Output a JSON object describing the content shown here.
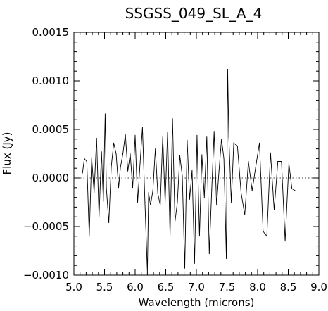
{
  "chart_data": {
    "type": "line",
    "title": "SSGSS_049_SL_A_4",
    "xlabel": "Wavelength (microns)",
    "ylabel": "Flux (Jy)",
    "xlim": [
      5.0,
      9.0
    ],
    "ylim": [
      -0.001,
      0.0015
    ],
    "x_ticks": [
      "5.0",
      "5.5",
      "6.0",
      "6.5",
      "7.0",
      "7.5",
      "8.0",
      "8.5",
      "9.0"
    ],
    "y_ticks": [
      "0.0015",
      "0.0010",
      "0.0005",
      "0.0000",
      "−0.0005",
      "−0.0010"
    ],
    "reference_line": {
      "y": 0.0,
      "style": "dotted"
    },
    "grid": false,
    "series": [
      {
        "color": "#000000",
        "x": [
          5.14,
          5.17,
          5.21,
          5.25,
          5.29,
          5.33,
          5.37,
          5.41,
          5.45,
          5.48,
          5.51,
          5.53,
          5.57,
          5.61,
          5.65,
          5.69,
          5.73,
          5.76,
          5.8,
          5.84,
          5.88,
          5.92,
          5.96,
          6.0,
          6.04,
          6.08,
          6.12,
          6.16,
          6.2,
          6.22,
          6.25,
          6.29,
          6.33,
          6.37,
          6.41,
          6.45,
          6.49,
          6.53,
          6.57,
          6.61,
          6.65,
          6.69,
          6.73,
          6.77,
          6.81,
          6.85,
          6.89,
          6.93,
          6.97,
          7.01,
          7.05,
          7.09,
          7.13,
          7.17,
          7.21,
          7.25,
          7.29,
          7.33,
          7.37,
          7.41,
          7.45,
          7.49,
          7.51,
          7.53,
          7.57,
          7.61,
          7.67,
          7.73,
          7.79,
          7.85,
          7.91,
          7.97,
          8.03,
          8.09,
          8.15,
          8.21,
          8.27,
          8.33,
          8.39,
          8.45,
          8.51,
          8.56,
          8.61
        ],
        "values": [
          5e-05,
          0.0002,
          0.00017,
          -0.0006,
          0.00021,
          -0.00015,
          0.00041,
          -0.0004,
          0.00027,
          -0.00024,
          0.00066,
          -0.0001,
          -0.00046,
          0.00012,
          0.00036,
          0.00025,
          -0.0001,
          0.00011,
          0.00025,
          0.00045,
          7e-05,
          0.00025,
          -0.0001,
          0.00044,
          -0.00025,
          0.00015,
          0.00052,
          -0.00025,
          -0.00097,
          -0.00015,
          -0.00028,
          -0.00013,
          0.0003,
          -0.00016,
          -0.00028,
          0.00043,
          -0.00025,
          0.00047,
          -0.0006,
          0.00061,
          -0.00045,
          -0.00025,
          0.00023,
          2e-05,
          -0.00093,
          0.00039,
          -0.00022,
          8e-05,
          -0.00088,
          0.00044,
          -0.0006,
          0.00024,
          -0.0002,
          0.00043,
          -0.00078,
          -0.00012,
          0.00048,
          -0.00028,
          8e-05,
          0.0004,
          0.0002,
          -0.00083,
          0.00112,
          0.00043,
          -0.00025,
          0.00036,
          0.00033,
          -0.00015,
          -0.00038,
          0.00017,
          -0.00013,
          0.00012,
          0.00036,
          -0.00055,
          -0.0006,
          0.00026,
          -0.00033,
          0.00017,
          0.00017,
          -0.00065,
          0.00015,
          -0.00011,
          -0.00013
        ]
      }
    ]
  }
}
